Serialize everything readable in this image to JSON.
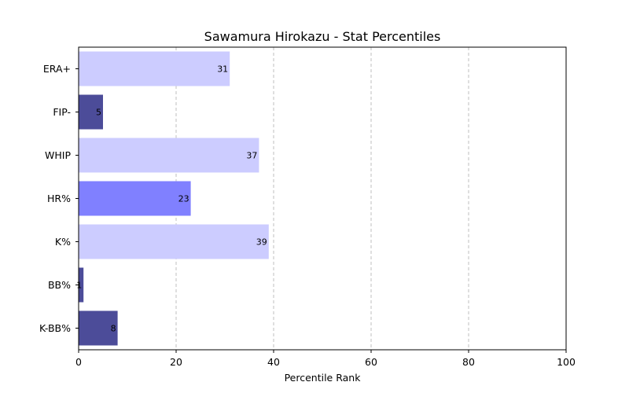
{
  "chart_data": {
    "type": "bar",
    "orientation": "horizontal",
    "title": "Sawamura Hirokazu - Stat Percentiles",
    "xlabel": "Percentile Rank",
    "ylabel": "",
    "xlim": [
      0,
      100
    ],
    "xticks": [
      0,
      20,
      40,
      60,
      80,
      100
    ],
    "grid": "x-dashed",
    "categories": [
      "ERA+",
      "FIP-",
      "WHIP",
      "HR%",
      "K%",
      "BB%",
      "K-BB%"
    ],
    "values": [
      31,
      5,
      37,
      23,
      39,
      1,
      8
    ],
    "colors": [
      "#ccccff",
      "#4c4c99",
      "#ccccff",
      "#8080ff",
      "#ccccff",
      "#4c4c99",
      "#4c4c99"
    ]
  }
}
